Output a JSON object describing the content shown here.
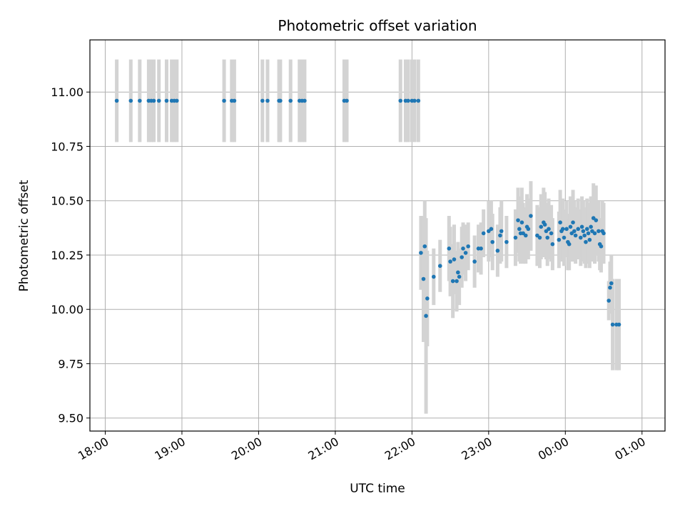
{
  "chart_data": {
    "type": "scatter",
    "title": "Photometric offset variation",
    "xlabel": "UTC time",
    "ylabel": "Photometric offset",
    "x_unit": "UTC time (hours, extends past midnight)",
    "xlim": [
      "17:48",
      "01:18"
    ],
    "ylim": [
      9.44,
      11.24
    ],
    "x_ticks": [
      "18:00",
      "19:00",
      "20:00",
      "21:00",
      "22:00",
      "23:00",
      "00:00",
      "01:00"
    ],
    "y_ticks": [
      "9.50",
      "9.75",
      "10.00",
      "10.25",
      "10.50",
      "10.75",
      "11.00"
    ],
    "grid": true,
    "colors": {
      "point": "#1f77b4",
      "errorbar": "#d3d3d3",
      "grid": "#b0b0b0"
    },
    "points": [
      {
        "x": "18:09",
        "y": 10.96,
        "err": 0.19
      },
      {
        "x": "18:20",
        "y": 10.96,
        "err": 0.19
      },
      {
        "x": "18:27",
        "y": 10.96,
        "err": 0.19
      },
      {
        "x": "18:34",
        "y": 10.96,
        "err": 0.19
      },
      {
        "x": "18:36",
        "y": 10.96,
        "err": 0.19
      },
      {
        "x": "18:38",
        "y": 10.96,
        "err": 0.19
      },
      {
        "x": "18:42",
        "y": 10.96,
        "err": 0.19
      },
      {
        "x": "18:48",
        "y": 10.96,
        "err": 0.19
      },
      {
        "x": "18:52",
        "y": 10.96,
        "err": 0.19
      },
      {
        "x": "18:54",
        "y": 10.96,
        "err": 0.19
      },
      {
        "x": "18:56",
        "y": 10.96,
        "err": 0.19
      },
      {
        "x": "19:33",
        "y": 10.96,
        "err": 0.19
      },
      {
        "x": "19:39",
        "y": 10.96,
        "err": 0.19
      },
      {
        "x": "19:41",
        "y": 10.96,
        "err": 0.19
      },
      {
        "x": "20:03",
        "y": 10.96,
        "err": 0.19
      },
      {
        "x": "20:07",
        "y": 10.96,
        "err": 0.19
      },
      {
        "x": "20:16",
        "y": 10.96,
        "err": 0.19
      },
      {
        "x": "20:17",
        "y": 10.96,
        "err": 0.19
      },
      {
        "x": "20:25",
        "y": 10.96,
        "err": 0.19
      },
      {
        "x": "20:32",
        "y": 10.96,
        "err": 0.19
      },
      {
        "x": "20:34",
        "y": 10.96,
        "err": 0.19
      },
      {
        "x": "20:36",
        "y": 10.96,
        "err": 0.19
      },
      {
        "x": "21:07",
        "y": 10.96,
        "err": 0.19
      },
      {
        "x": "21:09",
        "y": 10.96,
        "err": 0.19
      },
      {
        "x": "21:51",
        "y": 10.96,
        "err": 0.19
      },
      {
        "x": "21:55",
        "y": 10.96,
        "err": 0.19
      },
      {
        "x": "21:57",
        "y": 10.96,
        "err": 0.19
      },
      {
        "x": "22:00",
        "y": 10.96,
        "err": 0.19
      },
      {
        "x": "22:02",
        "y": 10.96,
        "err": 0.19
      },
      {
        "x": "22:05",
        "y": 10.96,
        "err": 0.19
      },
      {
        "x": "22:07",
        "y": 10.26,
        "err": 0.17
      },
      {
        "x": "22:09",
        "y": 10.14,
        "err": 0.29
      },
      {
        "x": "22:10",
        "y": 10.29,
        "err": 0.21
      },
      {
        "x": "22:11",
        "y": 9.97,
        "err": 0.45
      },
      {
        "x": "22:12",
        "y": 10.05,
        "err": 0.22
      },
      {
        "x": "22:17",
        "y": 10.15,
        "err": 0.13
      },
      {
        "x": "22:22",
        "y": 10.2,
        "err": 0.12
      },
      {
        "x": "22:29",
        "y": 10.28,
        "err": 0.15
      },
      {
        "x": "22:30",
        "y": 10.22,
        "err": 0.16
      },
      {
        "x": "22:32",
        "y": 10.13,
        "err": 0.17
      },
      {
        "x": "22:33",
        "y": 10.23,
        "err": 0.16
      },
      {
        "x": "22:35",
        "y": 10.13,
        "err": 0.14
      },
      {
        "x": "22:36",
        "y": 10.17,
        "err": 0.14
      },
      {
        "x": "22:37",
        "y": 10.15,
        "err": 0.13
      },
      {
        "x": "22:39",
        "y": 10.24,
        "err": 0.14
      },
      {
        "x": "22:40",
        "y": 10.28,
        "err": 0.12
      },
      {
        "x": "22:42",
        "y": 10.26,
        "err": 0.13
      },
      {
        "x": "22:44",
        "y": 10.29,
        "err": 0.11
      },
      {
        "x": "22:49",
        "y": 10.22,
        "err": 0.12
      },
      {
        "x": "22:52",
        "y": 10.28,
        "err": 0.11
      },
      {
        "x": "22:54",
        "y": 10.28,
        "err": 0.12
      },
      {
        "x": "22:56",
        "y": 10.35,
        "err": 0.11
      },
      {
        "x": "23:00",
        "y": 10.36,
        "err": 0.14
      },
      {
        "x": "23:02",
        "y": 10.37,
        "err": 0.13
      },
      {
        "x": "23:03",
        "y": 10.31,
        "err": 0.13
      },
      {
        "x": "23:07",
        "y": 10.27,
        "err": 0.12
      },
      {
        "x": "23:09",
        "y": 10.34,
        "err": 0.13
      },
      {
        "x": "23:10",
        "y": 10.36,
        "err": 0.14
      },
      {
        "x": "23:14",
        "y": 10.31,
        "err": 0.12
      },
      {
        "x": "23:21",
        "y": 10.33,
        "err": 0.13
      },
      {
        "x": "23:23",
        "y": 10.41,
        "err": 0.15
      },
      {
        "x": "23:24",
        "y": 10.37,
        "err": 0.15
      },
      {
        "x": "23:25",
        "y": 10.35,
        "err": 0.14
      },
      {
        "x": "23:26",
        "y": 10.4,
        "err": 0.16
      },
      {
        "x": "23:27",
        "y": 10.35,
        "err": 0.14
      },
      {
        "x": "23:29",
        "y": 10.34,
        "err": 0.13
      },
      {
        "x": "23:30",
        "y": 10.38,
        "err": 0.15
      },
      {
        "x": "23:31",
        "y": 10.37,
        "err": 0.14
      },
      {
        "x": "23:33",
        "y": 10.43,
        "err": 0.16
      },
      {
        "x": "23:38",
        "y": 10.34,
        "err": 0.14
      },
      {
        "x": "23:40",
        "y": 10.33,
        "err": 0.14
      },
      {
        "x": "23:41",
        "y": 10.38,
        "err": 0.15
      },
      {
        "x": "23:43",
        "y": 10.4,
        "err": 0.16
      },
      {
        "x": "23:44",
        "y": 10.39,
        "err": 0.15
      },
      {
        "x": "23:45",
        "y": 10.36,
        "err": 0.13
      },
      {
        "x": "23:46",
        "y": 10.33,
        "err": 0.13
      },
      {
        "x": "23:47",
        "y": 10.37,
        "err": 0.14
      },
      {
        "x": "23:49",
        "y": 10.35,
        "err": 0.13
      },
      {
        "x": "23:50",
        "y": 10.3,
        "err": 0.12
      },
      {
        "x": "23:55",
        "y": 10.32,
        "err": 0.13
      },
      {
        "x": "23:56",
        "y": 10.4,
        "err": 0.15
      },
      {
        "x": "23:57",
        "y": 10.36,
        "err": 0.14
      },
      {
        "x": "23:58",
        "y": 10.37,
        "err": 0.14
      },
      {
        "x": "23:59",
        "y": 10.33,
        "err": 0.13
      },
      {
        "x": "00:01",
        "y": 10.37,
        "err": 0.13
      },
      {
        "x": "00:02",
        "y": 10.31,
        "err": 0.13
      },
      {
        "x": "00:03",
        "y": 10.3,
        "err": 0.12
      },
      {
        "x": "00:04",
        "y": 10.38,
        "err": 0.14
      },
      {
        "x": "00:05",
        "y": 10.35,
        "err": 0.13
      },
      {
        "x": "00:06",
        "y": 10.4,
        "err": 0.15
      },
      {
        "x": "00:07",
        "y": 10.36,
        "err": 0.14
      },
      {
        "x": "00:08",
        "y": 10.34,
        "err": 0.13
      },
      {
        "x": "00:10",
        "y": 10.37,
        "err": 0.14
      },
      {
        "x": "00:12",
        "y": 10.33,
        "err": 0.13
      },
      {
        "x": "00:13",
        "y": 10.38,
        "err": 0.14
      },
      {
        "x": "00:14",
        "y": 10.36,
        "err": 0.14
      },
      {
        "x": "00:15",
        "y": 10.34,
        "err": 0.13
      },
      {
        "x": "00:16",
        "y": 10.31,
        "err": 0.12
      },
      {
        "x": "00:17",
        "y": 10.37,
        "err": 0.14
      },
      {
        "x": "00:18",
        "y": 10.35,
        "err": 0.14
      },
      {
        "x": "00:19",
        "y": 10.32,
        "err": 0.13
      },
      {
        "x": "00:20",
        "y": 10.38,
        "err": 0.14
      },
      {
        "x": "00:21",
        "y": 10.36,
        "err": 0.14
      },
      {
        "x": "00:22",
        "y": 10.42,
        "err": 0.16
      },
      {
        "x": "00:23",
        "y": 10.35,
        "err": 0.14
      },
      {
        "x": "00:24",
        "y": 10.41,
        "err": 0.16
      },
      {
        "x": "00:26",
        "y": 10.36,
        "err": 0.14
      },
      {
        "x": "00:27",
        "y": 10.3,
        "err": 0.12
      },
      {
        "x": "00:28",
        "y": 10.29,
        "err": 0.12
      },
      {
        "x": "00:29",
        "y": 10.36,
        "err": 0.14
      },
      {
        "x": "00:30",
        "y": 10.35,
        "err": 0.14
      },
      {
        "x": "00:34",
        "y": 10.04,
        "err": 0.09
      },
      {
        "x": "00:35",
        "y": 10.1,
        "err": 0.12
      },
      {
        "x": "00:36",
        "y": 10.12,
        "err": 0.13
      },
      {
        "x": "00:37",
        "y": 9.93,
        "err": 0.21
      },
      {
        "x": "00:40",
        "y": 9.93,
        "err": 0.21
      },
      {
        "x": "00:42",
        "y": 9.93,
        "err": 0.21
      }
    ]
  }
}
